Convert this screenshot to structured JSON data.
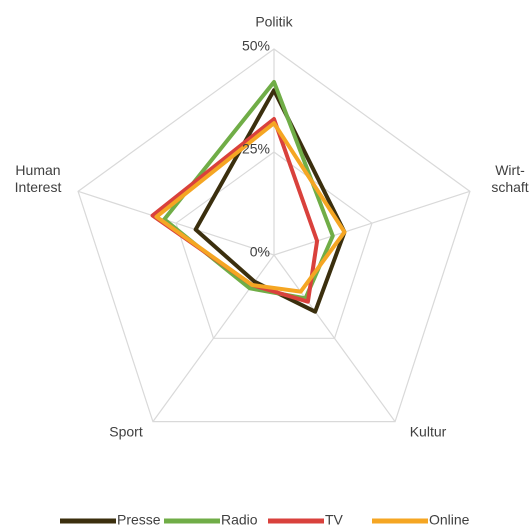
{
  "chart_data": {
    "type": "radar",
    "categories": [
      "Politik",
      "Wirt-\nschaft",
      "Kultur",
      "Sport",
      "Human\nInterest"
    ],
    "series": [
      {
        "name": "Presse",
        "color": "#3b2f0e",
        "values": [
          40,
          18,
          17,
          8,
          20
        ]
      },
      {
        "name": "Radio",
        "color": "#70ad47",
        "values": [
          42,
          15,
          13,
          10,
          28
        ]
      },
      {
        "name": "TV",
        "color": "#d9413c",
        "values": [
          33,
          11,
          14,
          9,
          31
        ]
      },
      {
        "name": "Online",
        "color": "#f5a623",
        "values": [
          32,
          18,
          11,
          9,
          30
        ]
      }
    ],
    "ylim": [
      0,
      50
    ],
    "yticks": [
      {
        "value": 0,
        "label": "0%"
      },
      {
        "value": 25,
        "label": "25%"
      },
      {
        "value": 50,
        "label": "50%"
      }
    ],
    "grid": true,
    "legend": "bottom"
  }
}
